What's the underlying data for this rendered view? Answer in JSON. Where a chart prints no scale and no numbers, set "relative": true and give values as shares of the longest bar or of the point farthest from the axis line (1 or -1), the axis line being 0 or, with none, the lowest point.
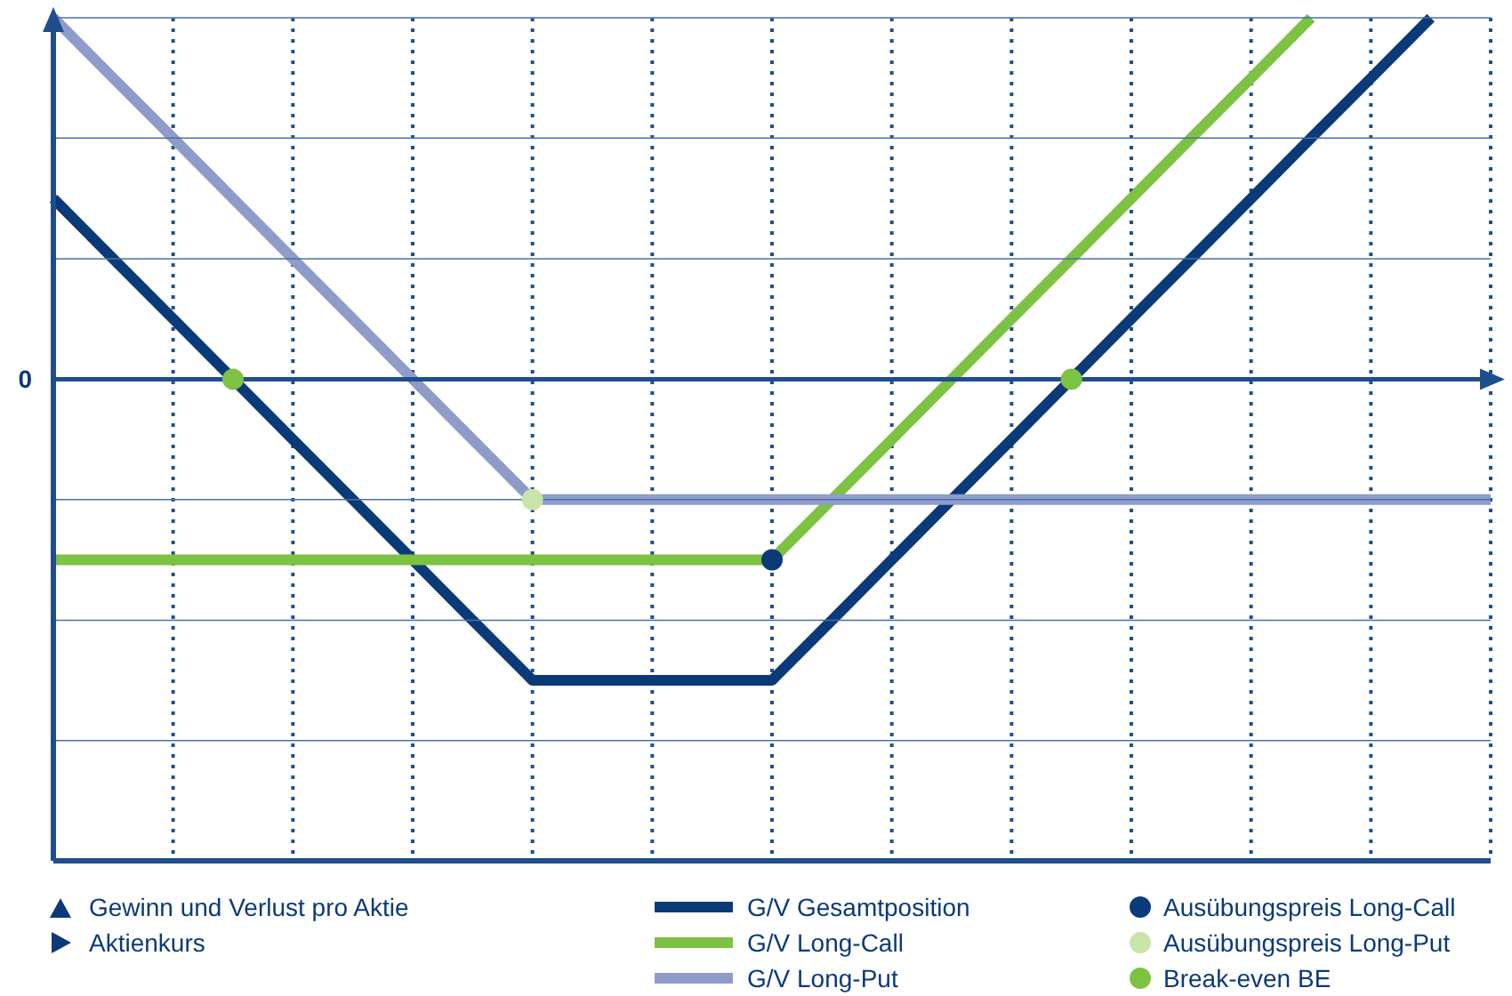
{
  "chart_data": {
    "type": "line",
    "relative": true,
    "categories": [
      null,
      null,
      null,
      null,
      null,
      null,
      null,
      null,
      null,
      null,
      null,
      null,
      null,
      null,
      null,
      null,
      null,
      null,
      null,
      null,
      null,
      null,
      null,
      null,
      null
    ],
    "series": [
      {
        "name": "G/V Gesamtposition",
        "color": "#0b3a78",
        "values": [
          0.5,
          0.333,
          0.167,
          0,
          -0.167,
          -0.333,
          -0.5,
          -0.667,
          -0.833,
          -0.833,
          -0.833,
          -0.833,
          -0.833,
          -0.667,
          -0.5,
          -0.333,
          -0.167,
          0,
          0.167,
          0.333,
          0.5,
          0.667,
          0.833,
          1,
          null
        ]
      },
      {
        "name": "G/V Long-Call",
        "color": "#7dc242",
        "values": [
          -0.5,
          -0.5,
          -0.5,
          -0.5,
          -0.5,
          -0.5,
          -0.5,
          -0.5,
          -0.5,
          -0.5,
          -0.5,
          -0.5,
          -0.5,
          -0.333,
          -0.167,
          0,
          0.167,
          0.333,
          0.5,
          0.667,
          0.833,
          1,
          null,
          null,
          null
        ]
      },
      {
        "name": "G/V Long-Put",
        "color": "#8f9cc9",
        "values": [
          1,
          0.833,
          0.667,
          0.5,
          0.333,
          0.167,
          0,
          -0.167,
          -0.333,
          -0.333,
          -0.333,
          -0.333,
          -0.333,
          -0.333,
          -0.333,
          -0.333,
          -0.333,
          -0.333,
          -0.333,
          -0.333,
          -0.333,
          -0.333,
          -0.333,
          -0.333,
          -0.333
        ]
      }
    ],
    "ref_lines": [
      {
        "axis": "y",
        "value": 0,
        "label": "0"
      },
      {
        "axis": "y",
        "value": 1
      },
      {
        "axis": "y",
        "value": 0.667
      },
      {
        "axis": "y",
        "value": 0.333
      },
      {
        "axis": "y",
        "value": -0.333
      },
      {
        "axis": "y",
        "value": -0.667
      },
      {
        "axis": "y",
        "value": -1
      }
    ],
    "annotations": [
      "Gewinn und Verlust pro Aktie",
      "Aktienkurs",
      "Ausübungspreis Long-Call",
      "Ausübungspreis Long-Put",
      "Break-even BE"
    ],
    "grid": "x",
    "legend": "bottom",
    "line_style": "solid"
  }
}
